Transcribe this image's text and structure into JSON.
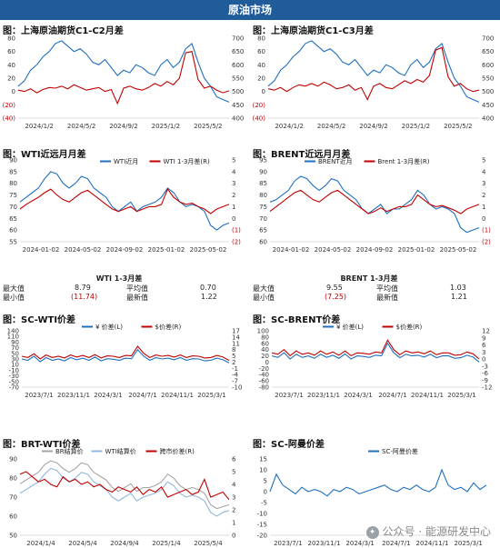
{
  "banner": "原油市场",
  "panels": {
    "p1": {
      "title": "图：上海原油期货C1-C2月差"
    },
    "p2": {
      "title": "图：上海原油期货C1-C3月差"
    },
    "p3": {
      "title": "图：WTI近远月月差"
    },
    "p4": {
      "title": "图：BRENT近远月月差"
    },
    "p5": {
      "title": "图：SC-WTI价差"
    },
    "p6": {
      "title": "图：SC-BRENT价差"
    },
    "p7": {
      "title": "图：BRT-WTI价差"
    },
    "p8": {
      "title": "图：SC-阿曼价差"
    }
  },
  "stats_wti": {
    "header": "WTI 1-3月差",
    "max_label": "最大值",
    "max_value": "8.79",
    "avg_label": "平均值",
    "avg_value": "0.70",
    "min_label": "最小值",
    "min_value": "(11.74)",
    "latest_label": "最新值",
    "latest_value": "1.22"
  },
  "stats_brent": {
    "header": "BRENT 1-3月差",
    "max_label": "最大值",
    "max_value": "9.55",
    "avg_label": "平均值",
    "avg_value": "1.03",
    "min_label": "最小值",
    "min_value": "(7.25)",
    "latest_label": "最新值",
    "latest_value": "1.21"
  },
  "watermark": "公众号 · 能源研发中心",
  "colors": {
    "banner": "#1f5c99",
    "blue": "#1f6fbf",
    "red": "#c00000",
    "lightblue": "#8fb8e0",
    "gray": "#a6a6a6"
  },
  "chart_data": [
    {
      "id": "p1",
      "type": "line",
      "x_ticks": [
        "2024/1/2",
        "2024/5/2",
        "2024/9/2",
        "2025/1/2",
        "2025/5/2"
      ],
      "y_left_ticks": [
        "80",
        "60",
        "40",
        "20",
        "0",
        "(20)",
        "(40)"
      ],
      "ylim_left": [
        -40,
        80
      ],
      "y_right_ticks": [
        "700",
        "650",
        "600",
        "550",
        "500",
        "450",
        "400"
      ],
      "ylim_right": [
        400,
        700
      ],
      "series": [
        {
          "axis": "right",
          "color": "#1f6fbf",
          "values": [
            520,
            540,
            580,
            600,
            630,
            650,
            680,
            690,
            670,
            650,
            660,
            640,
            610,
            600,
            620,
            590,
            560,
            580,
            570,
            600,
            590,
            570,
            560,
            600,
            620,
            590,
            610,
            660,
            680,
            610,
            550,
            520,
            480,
            470,
            460
          ]
        },
        {
          "axis": "left",
          "color": "#c00000",
          "values": [
            2,
            0,
            4,
            -2,
            3,
            6,
            5,
            8,
            4,
            10,
            6,
            2,
            4,
            6,
            0,
            3,
            -18,
            5,
            8,
            4,
            2,
            6,
            12,
            8,
            15,
            10,
            20,
            58,
            60,
            18,
            5,
            8,
            2,
            -2,
            1
          ]
        }
      ]
    },
    {
      "id": "p2",
      "type": "line",
      "x_ticks": [
        "2024/1/2",
        "2024/5/2",
        "2024/9/2",
        "2025/1/2",
        "2025/5/2"
      ],
      "y_left_ticks": [
        "80",
        "60",
        "40",
        "20",
        "0",
        "(20)",
        "(40)"
      ],
      "ylim_left": [
        -40,
        80
      ],
      "y_right_ticks": [
        "700",
        "650",
        "600",
        "550",
        "500",
        "450",
        "400"
      ],
      "ylim_right": [
        400,
        700
      ],
      "series": [
        {
          "axis": "right",
          "color": "#1f6fbf",
          "values": [
            520,
            540,
            580,
            600,
            630,
            650,
            680,
            690,
            670,
            650,
            660,
            640,
            610,
            600,
            620,
            590,
            560,
            580,
            570,
            600,
            590,
            570,
            560,
            600,
            620,
            590,
            610,
            660,
            680,
            610,
            550,
            520,
            480,
            470,
            460
          ]
        },
        {
          "axis": "left",
          "color": "#c00000",
          "values": [
            4,
            2,
            6,
            0,
            6,
            10,
            8,
            12,
            8,
            14,
            10,
            4,
            6,
            10,
            2,
            6,
            -12,
            8,
            12,
            6,
            4,
            10,
            16,
            12,
            18,
            14,
            24,
            62,
            66,
            22,
            8,
            12,
            4,
            0,
            2
          ]
        }
      ]
    },
    {
      "id": "p3",
      "type": "line",
      "x_ticks": [
        "2024-01-02",
        "2024-05-02",
        "2024-09-02",
        "2025-01-02",
        "2025-05-02"
      ],
      "y_left_ticks": [
        "90",
        "85",
        "80",
        "75",
        "70",
        "65",
        "60",
        "55"
      ],
      "ylim_left": [
        55,
        90
      ],
      "y_right_ticks": [
        "5",
        "4",
        "3",
        "2",
        "1",
        "0",
        "(1)",
        "(2)"
      ],
      "ylim_right": [
        -2,
        5
      ],
      "legend": [
        "WTI近月",
        "WTI 1-3月差(R)"
      ],
      "series": [
        {
          "name": "WTI近月",
          "axis": "left",
          "color": "#1f6fbf",
          "values": [
            72,
            74,
            76,
            78,
            82,
            85,
            84,
            80,
            78,
            80,
            83,
            82,
            78,
            76,
            74,
            70,
            68,
            70,
            72,
            68,
            70,
            71,
            72,
            74,
            78,
            76,
            72,
            70,
            71,
            70,
            68,
            62,
            60,
            62,
            63
          ]
        },
        {
          "name": "WTI 1-3月差(R)",
          "axis": "right",
          "color": "#c00000",
          "values": [
            0.8,
            1.2,
            1.5,
            1.8,
            2.2,
            2.5,
            2.0,
            1.6,
            1.4,
            1.8,
            2.2,
            2.4,
            2.0,
            1.6,
            1.2,
            0.8,
            0.6,
            0.8,
            1.0,
            0.6,
            0.8,
            1.0,
            1.0,
            1.2,
            2.5,
            1.8,
            1.4,
            1.2,
            1.3,
            1.0,
            0.8,
            0.4,
            0.8,
            1.0,
            1.2
          ]
        }
      ]
    },
    {
      "id": "p4",
      "type": "line",
      "x_ticks": [
        "2024-01-02",
        "2024-05-02",
        "2024-09-02",
        "2025-01-02",
        "2025-05-02"
      ],
      "y_left_ticks": [
        "95",
        "90",
        "85",
        "80",
        "75",
        "70",
        "65",
        "60"
      ],
      "ylim_left": [
        60,
        95
      ],
      "y_right_ticks": [
        "5",
        "4",
        "3",
        "2",
        "1",
        "0",
        "(1)",
        "(2)"
      ],
      "ylim_right": [
        -2,
        5
      ],
      "legend": [
        "BRENT近月",
        "Brent 1-3月差(R)"
      ],
      "series": [
        {
          "name": "BRENT近月",
          "axis": "left",
          "color": "#1f6fbf",
          "values": [
            77,
            78,
            80,
            82,
            86,
            88,
            87,
            84,
            82,
            84,
            87,
            86,
            82,
            80,
            78,
            74,
            72,
            74,
            76,
            72,
            74,
            74,
            76,
            78,
            82,
            80,
            76,
            74,
            75,
            74,
            72,
            66,
            64,
            65,
            66
          ]
        },
        {
          "name": "Brent 1-3月差(R)",
          "axis": "right",
          "color": "#c00000",
          "values": [
            0.6,
            1.0,
            1.4,
            1.8,
            2.2,
            2.4,
            2.0,
            1.6,
            1.4,
            1.8,
            2.2,
            2.4,
            2.0,
            1.6,
            1.2,
            0.8,
            0.4,
            0.6,
            0.9,
            0.6,
            0.8,
            1.0,
            1.0,
            1.2,
            2.0,
            1.6,
            1.2,
            1.0,
            1.1,
            0.9,
            0.7,
            0.4,
            0.8,
            1.0,
            1.2
          ]
        }
      ]
    },
    {
      "id": "p5",
      "type": "line",
      "x_ticks": [
        "2023/7/1",
        "2023/11/1",
        "2024/3/1",
        "2024/7/1",
        "2024/11/1",
        "2025/3/1"
      ],
      "y_left_ticks": [
        "140",
        "110",
        "90",
        "70",
        "50",
        "30",
        "10",
        "-10",
        "-30",
        "-50",
        "-70"
      ],
      "ylim_left": [
        -70,
        140
      ],
      "y_right_ticks": [
        "17",
        "14",
        "11",
        "8",
        "5",
        "2",
        "-1",
        "-4",
        "-7",
        "-10"
      ],
      "ylim_right": [
        -10,
        17
      ],
      "legend": [
        "¥ 价差(L)",
        "$价差(R)"
      ],
      "series": [
        {
          "name": "¥ 价差(L)",
          "axis": "left",
          "color": "#1f6fbf",
          "values": [
            35,
            30,
            45,
            25,
            40,
            30,
            35,
            28,
            40,
            32,
            38,
            30,
            42,
            28,
            36,
            34,
            30,
            38,
            36,
            70,
            45,
            30,
            40,
            35,
            38,
            32,
            40,
            30,
            36,
            35,
            28,
            30,
            38,
            32,
            20
          ]
        },
        {
          "name": "$价差(R)",
          "axis": "right",
          "color": "#c00000",
          "values": [
            4.8,
            4.2,
            6.0,
            3.6,
            5.4,
            4.2,
            4.8,
            4.0,
            5.4,
            4.4,
            5.2,
            4.2,
            5.6,
            4.0,
            5.0,
            4.8,
            4.2,
            5.2,
            5.0,
            9.6,
            6.2,
            4.2,
            5.4,
            4.8,
            5.2,
            4.4,
            5.4,
            4.2,
            5.0,
            4.8,
            4.0,
            4.2,
            5.2,
            4.4,
            2.8
          ]
        }
      ]
    },
    {
      "id": "p6",
      "type": "line",
      "x_ticks": [
        "2023/7/1",
        "2023/11/1",
        "2024/3/1",
        "2024/7/1",
        "2024/11/1",
        "2025/3/1"
      ],
      "y_left_ticks": [
        "100",
        "80",
        "60",
        "40",
        "20",
        "0",
        "-20",
        "-40",
        "-60",
        "-80"
      ],
      "ylim_left": [
        -80,
        100
      ],
      "y_right_ticks": [
        "12",
        "9",
        "6",
        "3",
        "0",
        "-3",
        "-6",
        "-9",
        "-12"
      ],
      "ylim_right": [
        -12,
        12
      ],
      "legend": [
        "¥ 价差(L)",
        "$价差(R)"
      ],
      "series": [
        {
          "name": "¥ 价差(L)",
          "axis": "left",
          "color": "#1f6fbf",
          "values": [
            20,
            15,
            30,
            10,
            25,
            15,
            20,
            12,
            25,
            15,
            22,
            12,
            26,
            10,
            20,
            18,
            15,
            22,
            20,
            60,
            30,
            14,
            25,
            20,
            22,
            16,
            25,
            14,
            20,
            20,
            12,
            14,
            22,
            16,
            0
          ]
        },
        {
          "name": "$价差(R)",
          "axis": "right",
          "color": "#c00000",
          "values": [
            2.6,
            2.0,
            4.0,
            1.4,
            3.4,
            2.0,
            2.6,
            1.6,
            3.4,
            2.0,
            3.0,
            1.6,
            3.4,
            1.4,
            2.6,
            2.4,
            2.0,
            3.0,
            2.6,
            8.0,
            4.0,
            1.8,
            3.4,
            2.6,
            3.0,
            2.2,
            3.4,
            1.8,
            2.6,
            2.6,
            1.6,
            1.8,
            3.0,
            2.2,
            0
          ]
        }
      ]
    },
    {
      "id": "p7",
      "type": "line",
      "x_ticks": [
        "2024/1/4",
        "2024/5/4",
        "2024/9/4",
        "2025/1/4",
        "2025/5/4"
      ],
      "y_left_ticks": [
        "90",
        "80",
        "70",
        "60",
        "50"
      ],
      "ylim_left": [
        50,
        90
      ],
      "y_right_ticks": [
        "6",
        "5",
        "4",
        "3",
        "2",
        "1",
        "0"
      ],
      "ylim_right": [
        0,
        6
      ],
      "legend": [
        "BR结算价",
        "WTI结算价",
        "跨市价差(R)"
      ],
      "series": [
        {
          "name": "BR结算价",
          "axis": "left",
          "color": "#a6a6a6",
          "values": [
            77,
            79,
            81,
            83,
            87,
            89,
            88,
            85,
            83,
            85,
            88,
            87,
            83,
            81,
            79,
            75,
            73,
            75,
            77,
            73,
            75,
            75,
            76,
            78,
            82,
            80,
            76,
            74,
            75,
            74,
            72,
            66,
            64,
            65,
            66
          ]
        },
        {
          "name": "WTI结算价",
          "axis": "left",
          "color": "#8fb8e0",
          "values": [
            72,
            74,
            76,
            78,
            82,
            85,
            84,
            80,
            78,
            80,
            83,
            82,
            78,
            76,
            74,
            70,
            68,
            70,
            72,
            68,
            70,
            71,
            72,
            74,
            78,
            76,
            72,
            70,
            71,
            70,
            68,
            62,
            60,
            62,
            63
          ]
        },
        {
          "name": "跨市价差(R)",
          "axis": "right",
          "color": "#c00000",
          "values": [
            4.8,
            5.0,
            4.6,
            4.2,
            4.4,
            4.0,
            3.8,
            4.6,
            4.2,
            4.4,
            4.0,
            4.2,
            3.8,
            4.0,
            3.6,
            3.4,
            3.8,
            3.6,
            3.4,
            3.8,
            3.2,
            3.6,
            3.4,
            3.8,
            3.0,
            3.2,
            3.4,
            3.6,
            3.2,
            3.4,
            4.4,
            3.0,
            3.2,
            3.4,
            2.8
          ]
        }
      ]
    },
    {
      "id": "p8",
      "type": "line",
      "x_ticks": [
        "2023/7/1",
        "2023/11/1",
        "2024/3/1",
        "2024/7/1",
        "2024/11/1",
        "2025/3/1"
      ],
      "y_left_ticks": [
        "15",
        "10",
        "5",
        "0",
        "-5",
        "-10",
        "-15",
        "-20"
      ],
      "ylim_left": [
        -20,
        15
      ],
      "legend": [
        "SC-阿曼价差"
      ],
      "series": [
        {
          "name": "SC-阿曼价差",
          "axis": "left",
          "color": "#1f6fbf",
          "values": [
            0,
            8,
            3,
            1,
            -1,
            2,
            0,
            1,
            0,
            -2,
            1,
            0,
            2,
            1,
            -1,
            0,
            1,
            2,
            3,
            1,
            0,
            2,
            1,
            3,
            1,
            0,
            2,
            10,
            3,
            1,
            2,
            0,
            4,
            1,
            3
          ]
        }
      ]
    }
  ]
}
